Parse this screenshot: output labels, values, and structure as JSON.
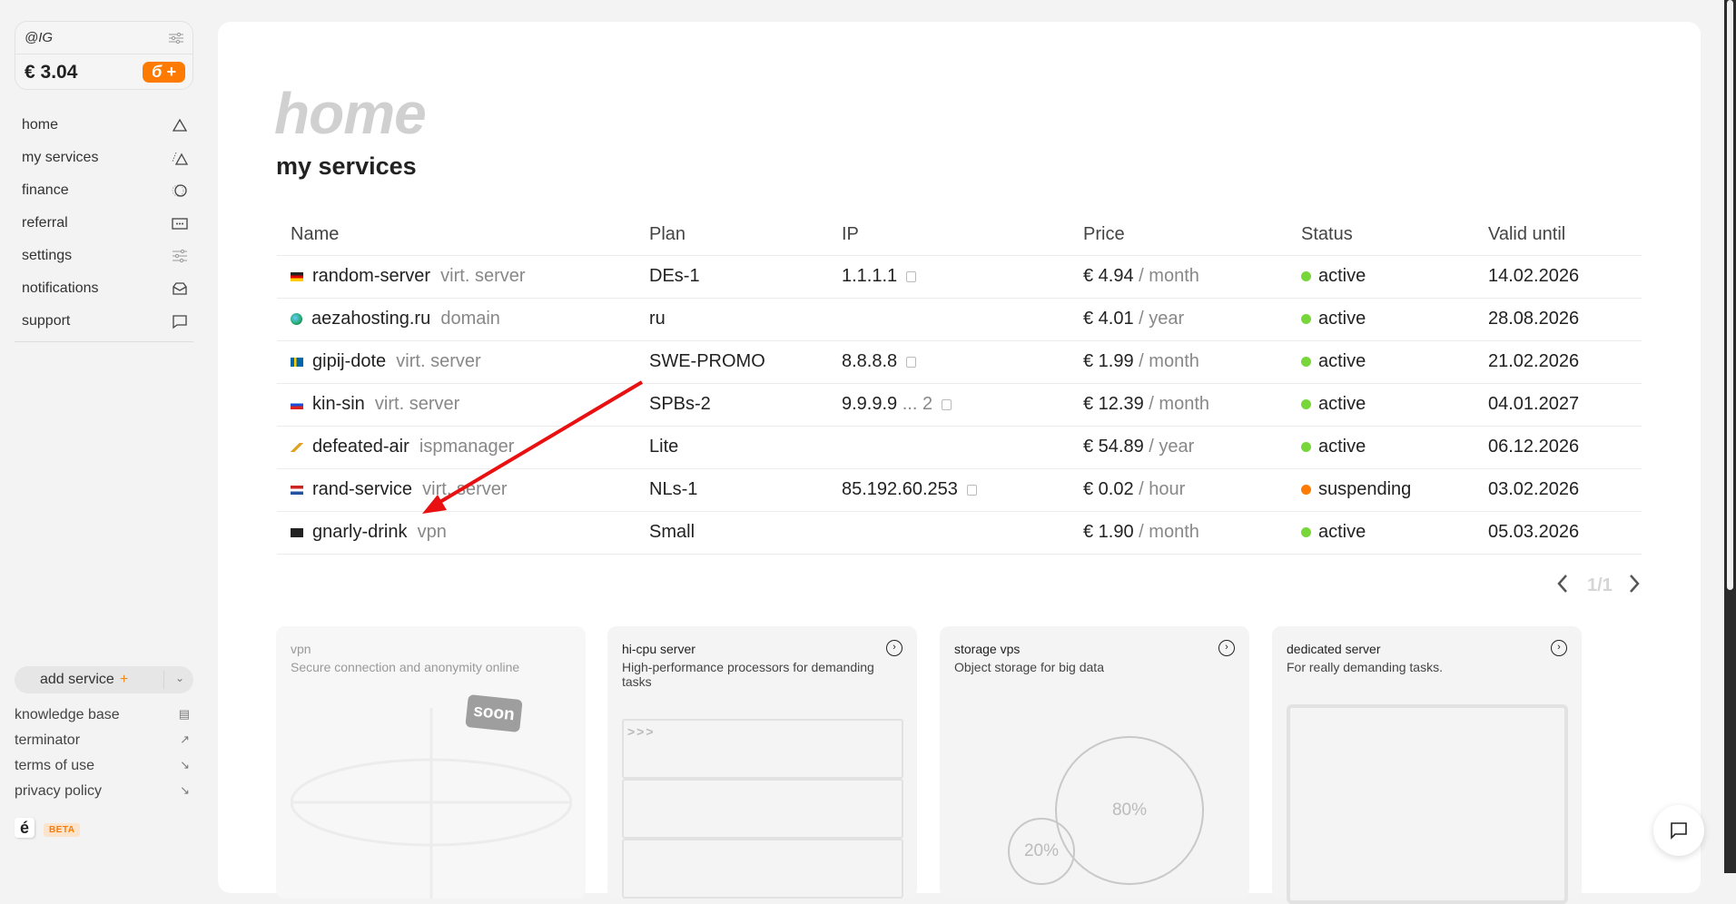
{
  "account": {
    "username": "@IG",
    "balance": "€ 3.04",
    "topup_label": "б +"
  },
  "nav": [
    {
      "label": "home",
      "icon": "triangle-icon"
    },
    {
      "label": "my services",
      "icon": "triangles-icon"
    },
    {
      "label": "finance",
      "icon": "coin-icon"
    },
    {
      "label": "referral",
      "icon": "card-icon"
    },
    {
      "label": "settings",
      "icon": "sliders-icon"
    },
    {
      "label": "notifications",
      "icon": "inbox-icon"
    },
    {
      "label": "support",
      "icon": "chat-icon"
    }
  ],
  "add_service": {
    "label": "add service",
    "plus": "+"
  },
  "links": [
    {
      "label": "knowledge base",
      "icon": "document-icon",
      "glyph": "▤"
    },
    {
      "label": "terminator",
      "icon": "arrow-up-right-icon",
      "glyph": "↗"
    },
    {
      "label": "terms of use",
      "icon": "arrow-down-right-icon",
      "glyph": "↘"
    },
    {
      "label": "privacy policy",
      "icon": "arrow-down-right-icon",
      "glyph": "↘"
    }
  ],
  "brand": {
    "logo": "é",
    "badge": "BETA"
  },
  "page": {
    "title": "home",
    "subtitle": "my services"
  },
  "table": {
    "headers": [
      "Name",
      "Plan",
      "IP",
      "Price",
      "Status",
      "Valid until"
    ],
    "rows": [
      {
        "flag": "de",
        "name": "random-server",
        "type": "virt. server",
        "plan": "DEs-1",
        "ip": "1.1.1.1",
        "ip_extra": "",
        "price": "€ 4.94",
        "period": "/ month",
        "status": "active",
        "valid": "14.02.2026"
      },
      {
        "flag": "globe",
        "name": "aezahosting.ru",
        "type": "domain",
        "plan": "ru",
        "ip": "",
        "ip_extra": "",
        "price": "€ 4.01",
        "period": "/ year",
        "status": "active",
        "valid": "28.08.2026"
      },
      {
        "flag": "se",
        "name": "gipij-dote",
        "type": "virt. server",
        "plan": "SWE-PROMO",
        "ip": "8.8.8.8",
        "ip_extra": "",
        "price": "€ 1.99",
        "period": "/ month",
        "status": "active",
        "valid": "21.02.2026"
      },
      {
        "flag": "ru",
        "name": "kin-sin",
        "type": "virt. server",
        "plan": "SPBs-2",
        "ip": "9.9.9.9",
        "ip_extra": "... 2",
        "price": "€ 12.39",
        "period": "/ month",
        "status": "active",
        "valid": "04.01.2027"
      },
      {
        "flag": "key",
        "name": "defeated-air",
        "type": "ispmanager",
        "plan": "Lite",
        "ip": "",
        "ip_extra": "",
        "price": "€ 54.89",
        "period": "/ year",
        "status": "active",
        "valid": "06.12.2026"
      },
      {
        "flag": "nl",
        "name": "rand-service",
        "type": "virt. server",
        "plan": "NLs-1",
        "ip": "85.192.60.253",
        "ip_extra": "",
        "price": "€ 0.02",
        "period": "/ hour",
        "status": "suspending",
        "valid": "03.02.2026"
      },
      {
        "flag": "pirate",
        "name": "gnarly-drink",
        "type": "vpn",
        "plan": "Small",
        "ip": "",
        "ip_extra": "",
        "price": "€ 1.90",
        "period": "/ month",
        "status": "active",
        "valid": "05.03.2026"
      }
    ]
  },
  "pagination": {
    "label": "1/1"
  },
  "cards": [
    {
      "title": "vpn",
      "desc": "Secure connection and anonymity online",
      "badge": "soon"
    },
    {
      "title": "hi-cpu server",
      "desc": "High-performance processors for demanding tasks",
      "prompt": ">>>"
    },
    {
      "title": "storage vps",
      "desc": "Object storage for big data",
      "small": "20%",
      "large": "80%"
    },
    {
      "title": "dedicated server",
      "desc": "For really demanding tasks."
    }
  ],
  "colors": {
    "accent": "#ff7a00",
    "active": "#77d63a",
    "suspending": "#ff7a00",
    "annotation_arrow": "#e81010"
  }
}
